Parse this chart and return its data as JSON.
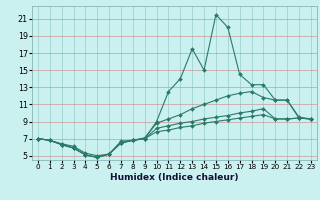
{
  "xlabel": "Humidex (Indice chaleur)",
  "bg_color": "#caf0f0",
  "grid_color_v": "#99cccc",
  "grid_color_h": "#cc9999",
  "line_color": "#2a7a6a",
  "xlim": [
    -0.5,
    23.5
  ],
  "ylim": [
    4.5,
    22.5
  ],
  "xticks": [
    0,
    1,
    2,
    3,
    4,
    5,
    6,
    7,
    8,
    9,
    10,
    11,
    12,
    13,
    14,
    15,
    16,
    17,
    18,
    19,
    20,
    21,
    22,
    23
  ],
  "yticks": [
    5,
    7,
    9,
    11,
    13,
    15,
    17,
    19,
    21
  ],
  "series": [
    {
      "x": [
        0,
        1,
        2,
        3,
        4,
        5,
        6,
        7,
        8,
        9,
        10,
        11,
        12,
        13,
        14,
        15,
        16,
        17,
        18,
        19,
        20,
        21,
        22,
        23
      ],
      "y": [
        7.0,
        6.8,
        6.4,
        6.1,
        5.3,
        5.0,
        5.2,
        6.7,
        6.8,
        7.0,
        9.0,
        12.5,
        14.0,
        17.5,
        15.0,
        21.5,
        20.0,
        14.5,
        13.3,
        13.3,
        11.5,
        11.5,
        9.5,
        9.3
      ]
    },
    {
      "x": [
        0,
        1,
        2,
        3,
        4,
        5,
        6,
        7,
        8,
        9,
        10,
        11,
        12,
        13,
        14,
        15,
        16,
        17,
        18,
        19,
        20,
        21,
        22,
        23
      ],
      "y": [
        7.0,
        6.8,
        6.3,
        5.9,
        5.1,
        4.8,
        5.2,
        6.5,
        6.8,
        7.1,
        8.8,
        9.3,
        9.8,
        10.5,
        11.0,
        11.5,
        12.0,
        12.3,
        12.5,
        11.8,
        11.5,
        11.5,
        9.4,
        9.3
      ]
    },
    {
      "x": [
        0,
        1,
        2,
        3,
        4,
        5,
        6,
        7,
        8,
        9,
        10,
        11,
        12,
        13,
        14,
        15,
        16,
        17,
        18,
        19,
        20,
        21,
        22,
        23
      ],
      "y": [
        7.0,
        6.8,
        6.3,
        5.9,
        5.1,
        4.8,
        5.2,
        6.5,
        6.8,
        7.0,
        8.2,
        8.5,
        8.8,
        9.0,
        9.3,
        9.5,
        9.7,
        10.0,
        10.2,
        10.5,
        9.3,
        9.3,
        9.4,
        9.3
      ]
    },
    {
      "x": [
        0,
        1,
        2,
        3,
        4,
        5,
        6,
        7,
        8,
        9,
        10,
        11,
        12,
        13,
        14,
        15,
        16,
        17,
        18,
        19,
        20,
        21,
        22,
        23
      ],
      "y": [
        7.0,
        6.8,
        6.3,
        5.9,
        5.1,
        4.8,
        5.2,
        6.5,
        6.8,
        7.0,
        7.8,
        8.0,
        8.3,
        8.5,
        8.8,
        9.0,
        9.2,
        9.4,
        9.6,
        9.8,
        9.3,
        9.3,
        9.4,
        9.3
      ]
    }
  ]
}
